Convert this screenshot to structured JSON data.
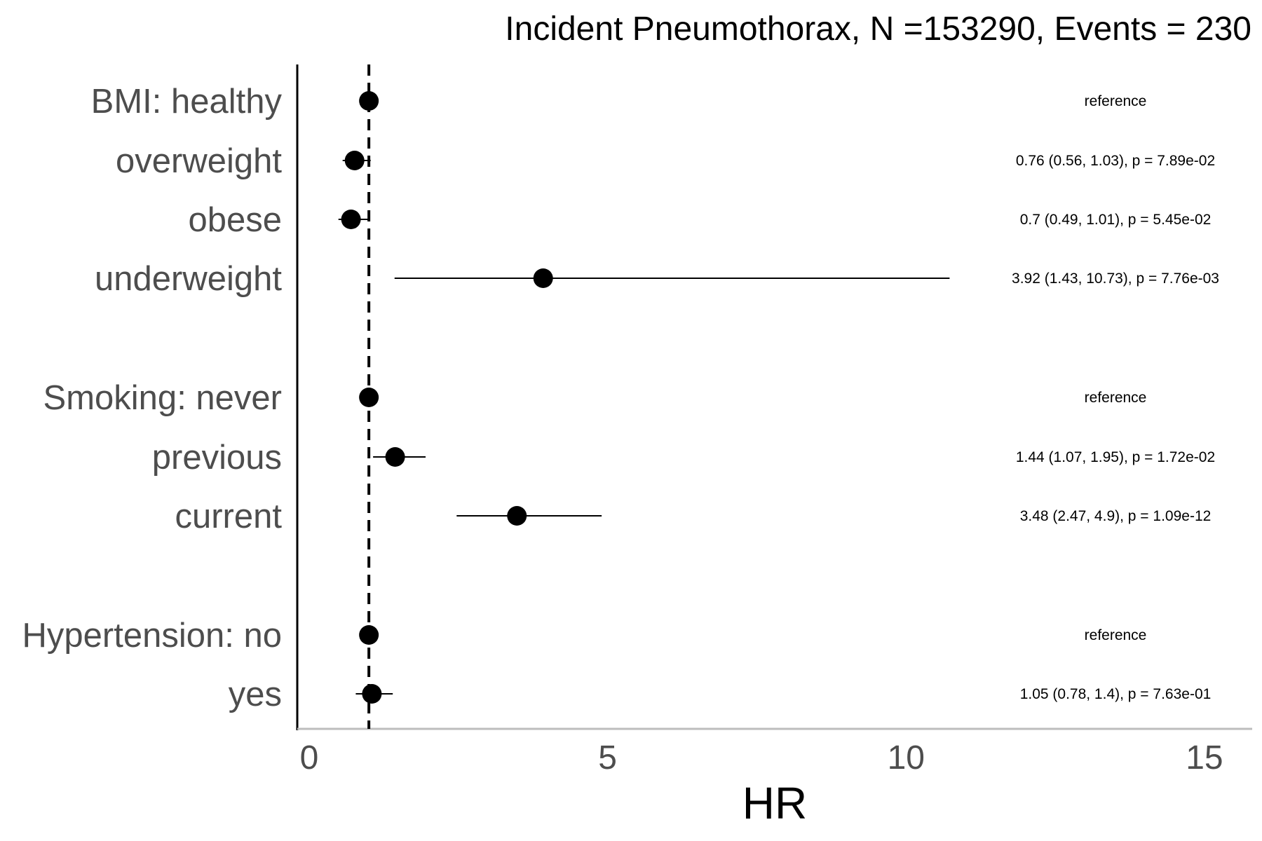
{
  "chart_data": {
    "type": "forest",
    "title": "Incident Pneumothorax, N =153290, Events = 230",
    "xlabel": "HR",
    "xlim": [
      -0.2,
      15.8
    ],
    "xticks": [
      0,
      5,
      10,
      15
    ],
    "reference_line": 1,
    "rows": [
      {
        "label": "BMI: healthy",
        "hr": 1,
        "lo": null,
        "hi": null,
        "annotation": "reference"
      },
      {
        "label": "overweight",
        "hr": 0.76,
        "lo": 0.56,
        "hi": 1.03,
        "annotation": "0.76 (0.56, 1.03), p = 7.89e-02"
      },
      {
        "label": "obese",
        "hr": 0.7,
        "lo": 0.49,
        "hi": 1.01,
        "annotation": "0.7 (0.49, 1.01), p = 5.45e-02"
      },
      {
        "label": "underweight",
        "hr": 3.92,
        "lo": 1.43,
        "hi": 10.73,
        "annotation": "3.92 (1.43, 10.73), p = 7.76e-03"
      },
      {
        "label": "Smoking: never",
        "hr": 1,
        "lo": null,
        "hi": null,
        "annotation": "reference"
      },
      {
        "label": "previous",
        "hr": 1.44,
        "lo": 1.07,
        "hi": 1.95,
        "annotation": "1.44 (1.07, 1.95), p = 1.72e-02"
      },
      {
        "label": "current",
        "hr": 3.48,
        "lo": 2.47,
        "hi": 4.9,
        "annotation": "3.48 (2.47, 4.9), p = 1.09e-12"
      },
      {
        "label": "Hypertension: no",
        "hr": 1,
        "lo": null,
        "hi": null,
        "annotation": "reference"
      },
      {
        "label": "yes",
        "hr": 1.05,
        "lo": 0.78,
        "hi": 1.4,
        "annotation": "1.05 (0.78, 1.4), p = 7.63e-01"
      }
    ]
  }
}
